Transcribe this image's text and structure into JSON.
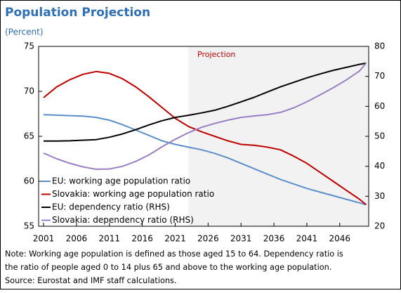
{
  "chart_data": {
    "type": "line",
    "title": "Population Projection",
    "subtitle": "(Percent)",
    "annotation": "Projection",
    "projection_start": 2023,
    "x": [
      2001,
      2003,
      2005,
      2007,
      2009,
      2011,
      2013,
      2015,
      2017,
      2019,
      2021,
      2023,
      2025,
      2027,
      2029,
      2031,
      2033,
      2035,
      2037,
      2039,
      2041,
      2043,
      2045,
      2047,
      2049,
      2050
    ],
    "xlim": [
      2000.25,
      2050.4
    ],
    "xticks": [
      2001,
      2006,
      2011,
      2016,
      2021,
      2026,
      2031,
      2036,
      2041,
      2046
    ],
    "ylim": [
      55,
      75
    ],
    "yticks": [
      55,
      60,
      65,
      70,
      75
    ],
    "y2lim": [
      20,
      80
    ],
    "y2ticks": [
      20,
      30,
      40,
      50,
      60,
      70,
      80
    ],
    "series": [
      {
        "name": "EU: working age population ratio",
        "color": "#5b8fc9",
        "values": [
          67.4,
          67.35,
          67.3,
          67.25,
          67.1,
          66.8,
          66.3,
          65.7,
          65.1,
          64.5,
          64.1,
          63.8,
          63.5,
          63.1,
          62.6,
          62.0,
          61.4,
          60.8,
          60.2,
          59.7,
          59.2,
          58.8,
          58.4,
          58.0,
          57.6,
          57.4
        ]
      },
      {
        "name": "Slovakia: working age population ratio",
        "color": "#c00000",
        "values": [
          69.3,
          70.5,
          71.3,
          71.9,
          72.2,
          72.0,
          71.4,
          70.5,
          69.4,
          68.2,
          67.0,
          66.1,
          65.5,
          65.0,
          64.5,
          64.1,
          64.0,
          63.8,
          63.5,
          62.8,
          62.0,
          61.0,
          60.0,
          59.0,
          58.0,
          57.4
        ]
      },
      {
        "name": "EU: dependency ratio (RHS)",
        "color": "#000000",
        "axis": "y2",
        "values": [
          48.4,
          48.4,
          48.5,
          48.7,
          48.9,
          49.7,
          50.8,
          52.2,
          53.8,
          55.2,
          56.3,
          57.0,
          57.8,
          58.7,
          60.0,
          61.5,
          63.0,
          64.8,
          66.5,
          68.0,
          69.5,
          70.8,
          72.0,
          73.0,
          74.0,
          74.4
        ]
      },
      {
        "name": "Slovakia: dependency ratio (RHS)",
        "color": "#9b7fc4",
        "axis": "y2",
        "values": [
          44.4,
          42.5,
          41.0,
          39.8,
          39.0,
          39.1,
          40.0,
          41.6,
          43.8,
          46.5,
          49.0,
          51.2,
          53.0,
          54.3,
          55.4,
          56.3,
          56.8,
          57.2,
          58.0,
          59.5,
          61.5,
          63.8,
          66.2,
          68.8,
          71.8,
          74.4
        ]
      }
    ],
    "note": [
      "Note: Working age population is defined as those aged 15 to 64. Dependency ratio is",
      "the ratio of people aged 0 to 14 plus 65 and above to the working age population."
    ],
    "source": "Source: Eurostat and IMF staff calculations."
  }
}
